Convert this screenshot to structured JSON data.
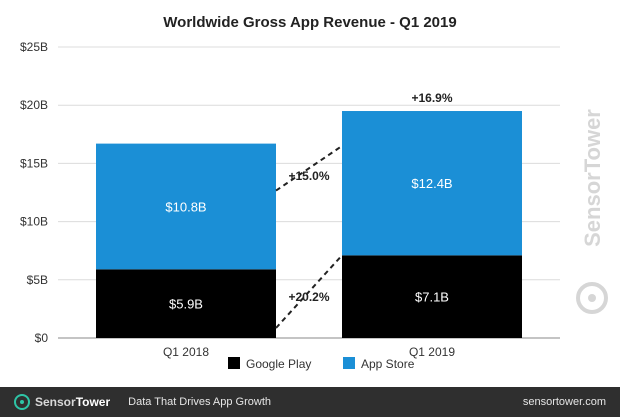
{
  "chart_data": {
    "type": "bar",
    "stacked": true,
    "title": "Worldwide Gross App Revenue - Q1 2019",
    "categories": [
      "Q1 2018",
      "Q1 2019"
    ],
    "series": [
      {
        "name": "Google Play",
        "values": [
          5.9,
          7.1
        ],
        "labels": [
          "$5.9B",
          "$7.1B"
        ],
        "color": "#000000"
      },
      {
        "name": "App Store",
        "values": [
          10.8,
          12.4
        ],
        "labels": [
          "$10.8B",
          "$12.4B"
        ],
        "color": "#1b8fd6"
      }
    ],
    "yticks": [
      0,
      5,
      10,
      15,
      20,
      25
    ],
    "ytick_labels": [
      "$0",
      "$5B",
      "$10B",
      "$15B",
      "$20B",
      "$25B"
    ],
    "ylim": [
      0,
      25
    ],
    "grid": true,
    "legend": "bottom",
    "annotations": {
      "total_growth": "+16.9%",
      "app_store_growth": "+15.0%",
      "google_play_growth": "+20.2%"
    }
  },
  "watermark": "SensorTower",
  "footer": {
    "brand_light": "Sensor",
    "brand_bold": "Tower",
    "tagline": "Data That Drives App Growth",
    "url": "sensortower.com"
  }
}
